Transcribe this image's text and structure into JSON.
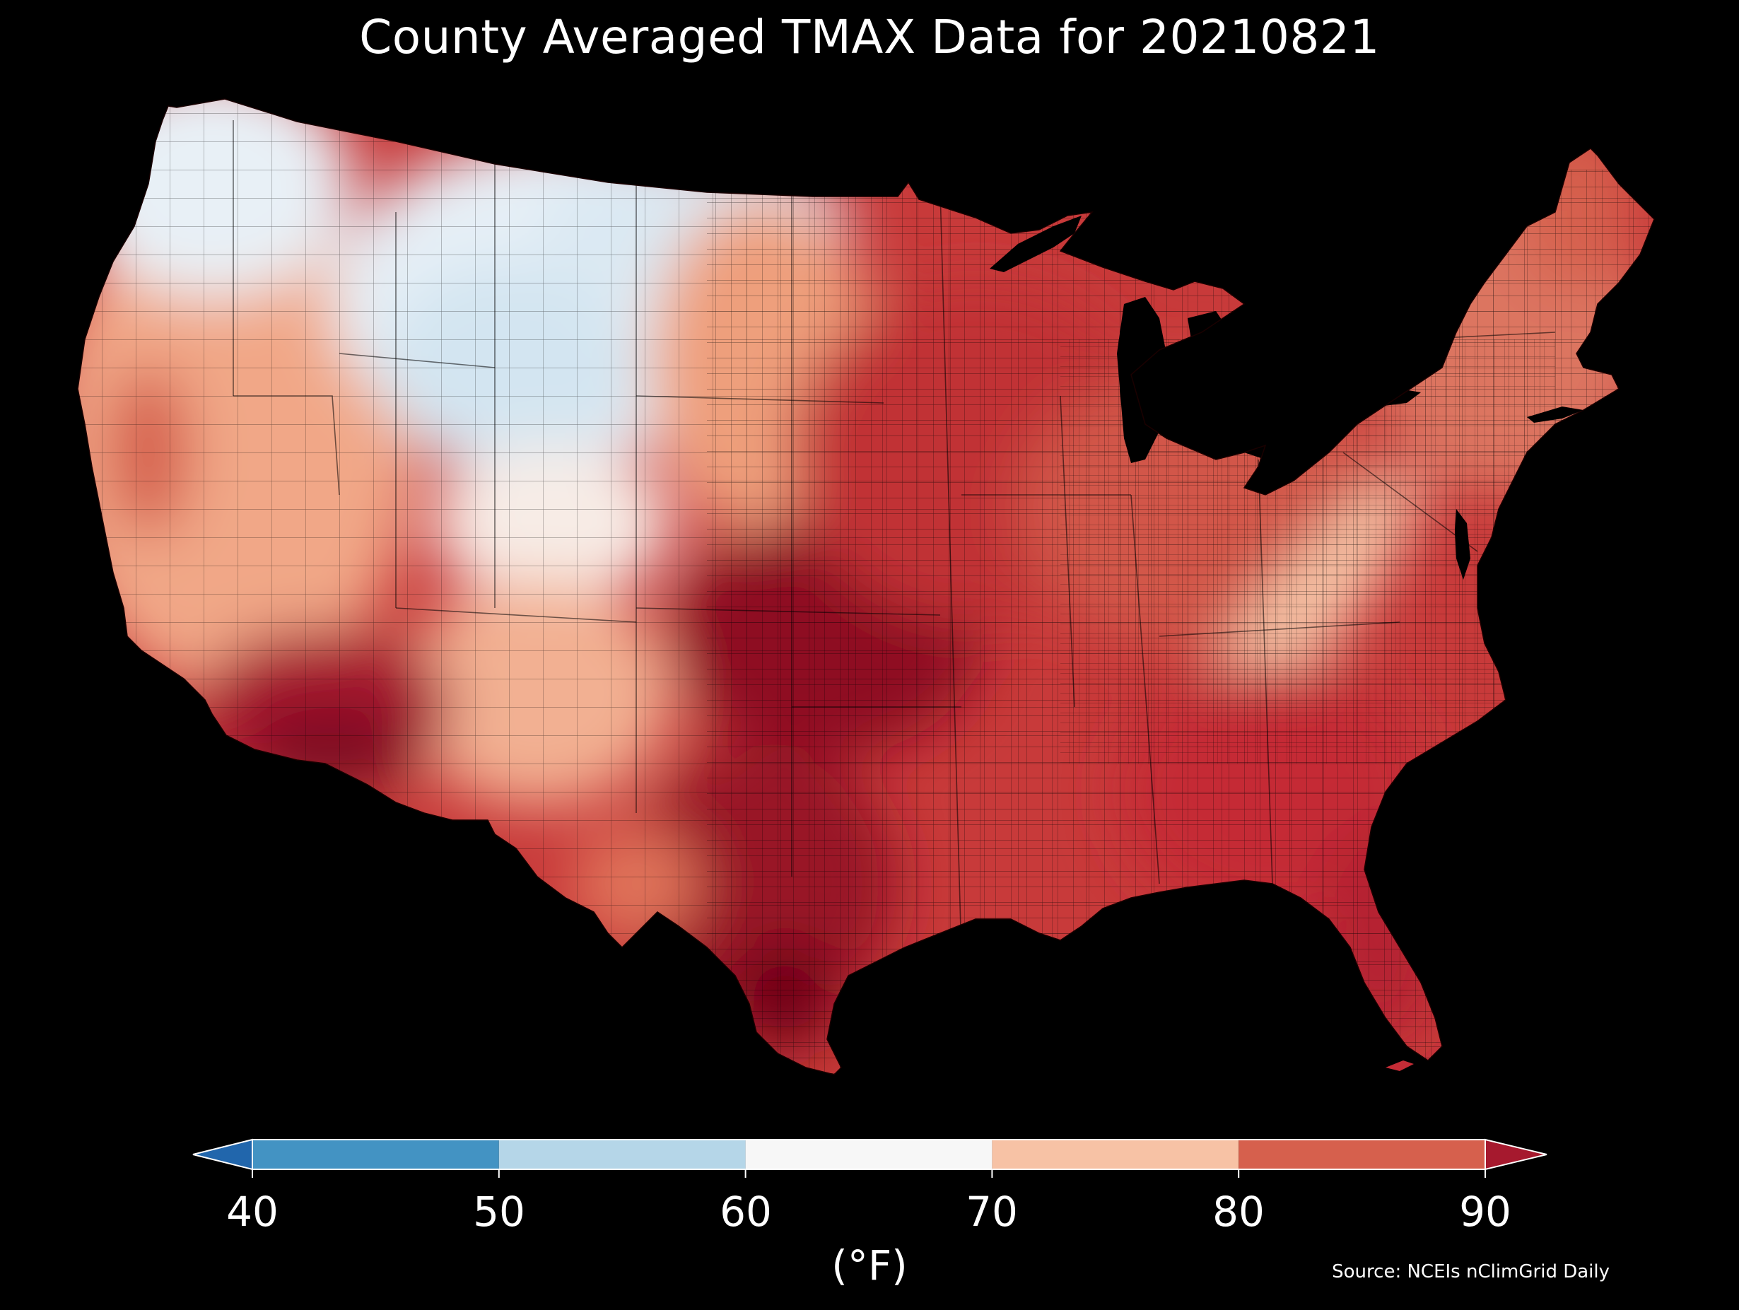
{
  "title": "County Averaged TMAX Data for 20210821",
  "colorbar": {
    "ticks": [
      "40",
      "50",
      "60",
      "70",
      "80",
      "90"
    ],
    "unit": "(°F)",
    "bins": [
      {
        "from": 40,
        "to": 50,
        "color": "#4393c3"
      },
      {
        "from": 50,
        "to": 60,
        "color": "#b5d6e8"
      },
      {
        "from": 60,
        "to": 70,
        "color": "#f7f7f7"
      },
      {
        "from": 70,
        "to": 80,
        "color": "#f7c2a5"
      },
      {
        "from": 80,
        "to": 90,
        "color": "#d6604d"
      }
    ],
    "under_color": "#2166ac",
    "over_color": "#a6192e"
  },
  "source": "Source: NCEIs nClimGrid Daily",
  "map_regions": [
    {
      "region": "Pacific Northwest",
      "range": "50-70",
      "color": "#e4eef6"
    },
    {
      "region": "Northern Rockies / Plains",
      "range": "50-70",
      "color": "#dce9f3"
    },
    {
      "region": "California / Great Basin",
      "range": "70-80",
      "color": "#f1a787"
    },
    {
      "region": "Desert Southwest",
      "range": "above 90",
      "color": "#a6192e"
    },
    {
      "region": "Southern Plains / Texas",
      "range": "above 90",
      "color": "#8e0f24"
    },
    {
      "region": "Midwest",
      "range": "80-90",
      "color": "#c83a3a"
    },
    {
      "region": "Southeast",
      "range": "80-90",
      "color": "#c2303a"
    },
    {
      "region": "Appalachians",
      "range": "70-80",
      "color": "#f3b89a"
    },
    {
      "region": "Northeast",
      "range": "80-90",
      "color": "#d86a55"
    }
  ]
}
